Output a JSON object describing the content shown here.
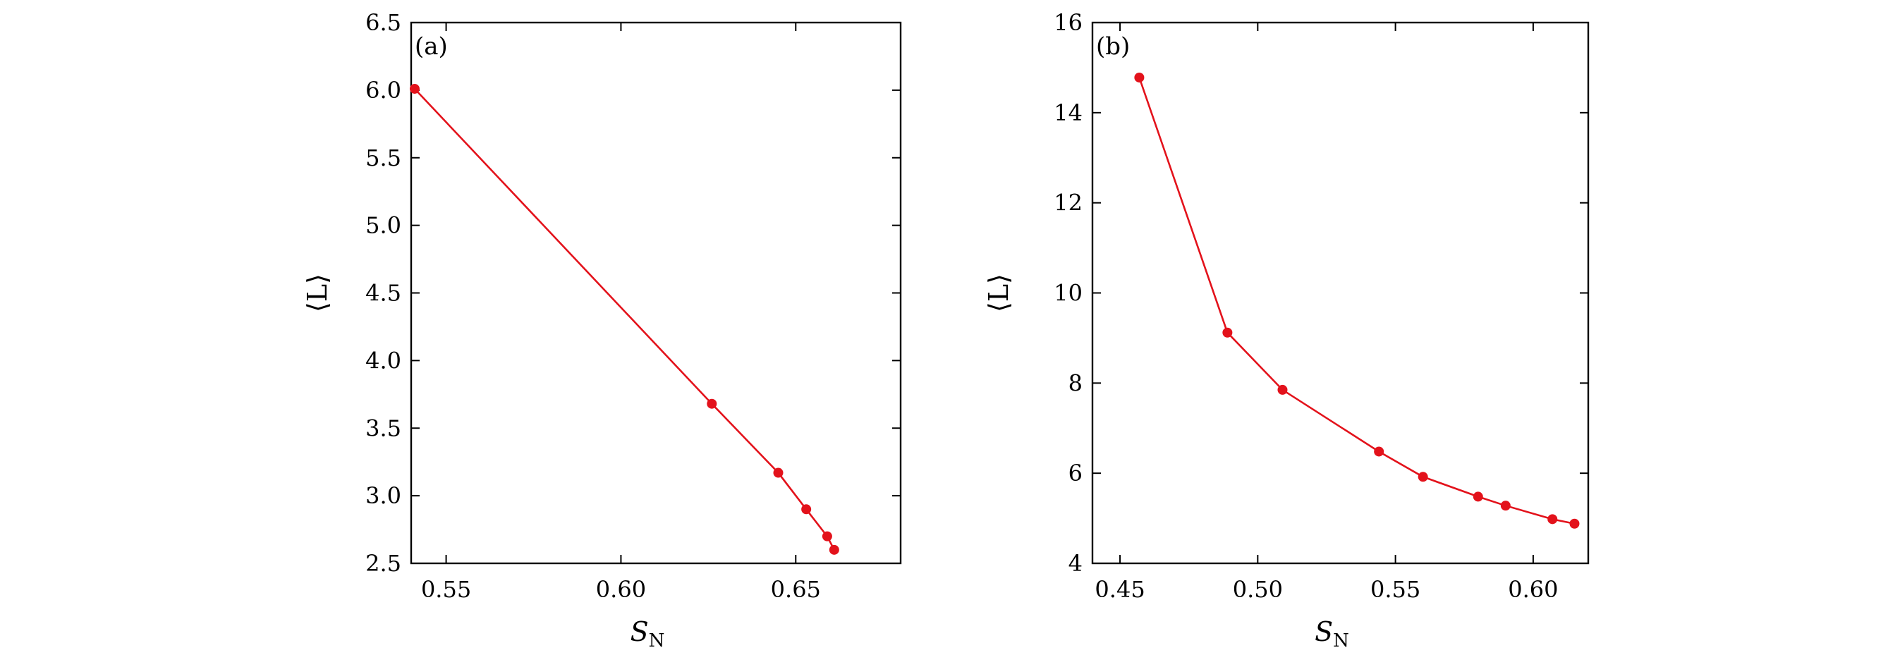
{
  "chart_data": [
    {
      "type": "line",
      "panel_label": "(a)",
      "xlabel_main": "S",
      "xlabel_sub": "N",
      "ylabel": "⟨L⟩",
      "xlim": [
        0.54,
        0.68
      ],
      "ylim": [
        2.5,
        6.5
      ],
      "xticks": [
        0.55,
        0.6,
        0.65
      ],
      "xtick_labels": [
        "0.55",
        "0.60",
        "0.65"
      ],
      "yticks": [
        2.5,
        3.0,
        3.5,
        4.0,
        4.5,
        5.0,
        5.5,
        6.0,
        6.5
      ],
      "ytick_labels": [
        "2.5",
        "3.0",
        "3.5",
        "4.0",
        "4.5",
        "5.0",
        "5.5",
        "6.0",
        "6.5"
      ],
      "grid": false,
      "color": "#e3121b",
      "series": [
        {
          "x": [
            0.541,
            0.626,
            0.645,
            0.653,
            0.659,
            0.661
          ],
          "y": [
            6.01,
            3.68,
            3.17,
            2.9,
            2.7,
            2.6
          ]
        }
      ]
    },
    {
      "type": "line",
      "panel_label": "(b)",
      "xlabel_main": "S",
      "xlabel_sub": "N",
      "ylabel": "⟨L⟩",
      "xlim": [
        0.44,
        0.62
      ],
      "ylim": [
        4,
        16
      ],
      "xticks": [
        0.45,
        0.5,
        0.55,
        0.6
      ],
      "xtick_labels": [
        "0.45",
        "0.50",
        "0.55",
        "0.60"
      ],
      "yticks": [
        4,
        6,
        8,
        10,
        12,
        14,
        16
      ],
      "ytick_labels": [
        "4",
        "6",
        "8",
        "10",
        "12",
        "14",
        "16"
      ],
      "grid": false,
      "color": "#e3121b",
      "series": [
        {
          "x": [
            0.457,
            0.489,
            0.509,
            0.544,
            0.56,
            0.58,
            0.59,
            0.607,
            0.615
          ],
          "y": [
            14.78,
            9.12,
            7.85,
            6.48,
            5.92,
            5.48,
            5.28,
            4.98,
            4.88
          ]
        }
      ]
    }
  ]
}
